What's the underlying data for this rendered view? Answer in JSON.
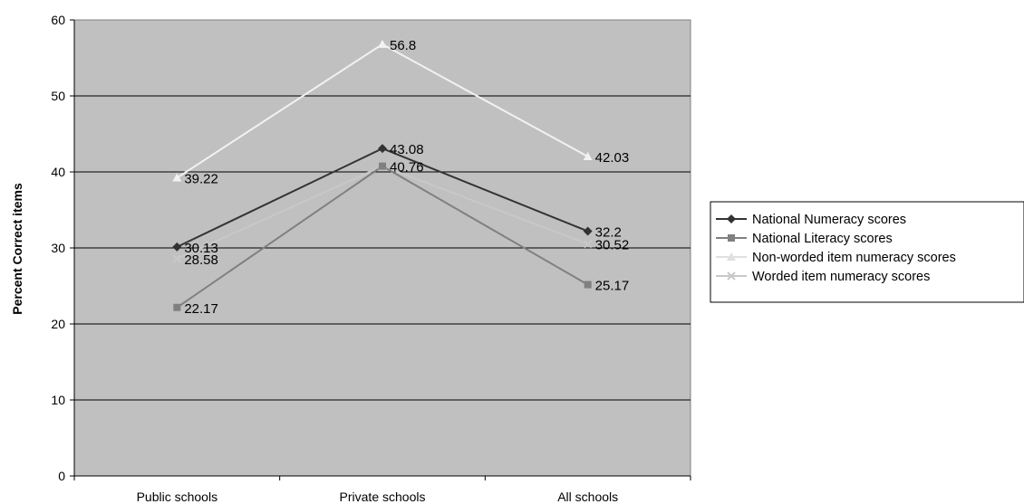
{
  "chart_data": {
    "type": "line",
    "title": "",
    "xlabel": "",
    "ylabel": "Percent Correct items",
    "ylim": [
      0,
      60
    ],
    "yticks": [
      "0",
      "10",
      "20",
      "30",
      "40",
      "50",
      "60"
    ],
    "categories": [
      "Public schools",
      "Private schools",
      "All schools"
    ],
    "legend_position": "right",
    "series": [
      {
        "name": "National Numeracy scores",
        "marker": "diamond",
        "color": "#333333",
        "values": [
          30.13,
          43.08,
          32.2
        ],
        "labels": [
          "30.13",
          "43.08",
          "32.2"
        ]
      },
      {
        "name": "National Literacy scores",
        "marker": "square",
        "color": "#808080",
        "values": [
          22.17,
          40.76,
          25.17
        ],
        "labels": [
          "22.17",
          "40.76",
          "25.17"
        ]
      },
      {
        "name": "Non-worded item numeracy scores",
        "marker": "triangle",
        "color": "#f2f2f2",
        "values": [
          39.22,
          56.8,
          42.03
        ],
        "labels": [
          "39.22",
          "56.8",
          "42.03"
        ]
      },
      {
        "name": "Worded item numeracy scores",
        "marker": "x",
        "color": "#c8c8c8",
        "values": [
          28.58,
          40.76,
          30.52
        ],
        "labels": [
          "28.58",
          "",
          "30.52"
        ]
      }
    ]
  }
}
